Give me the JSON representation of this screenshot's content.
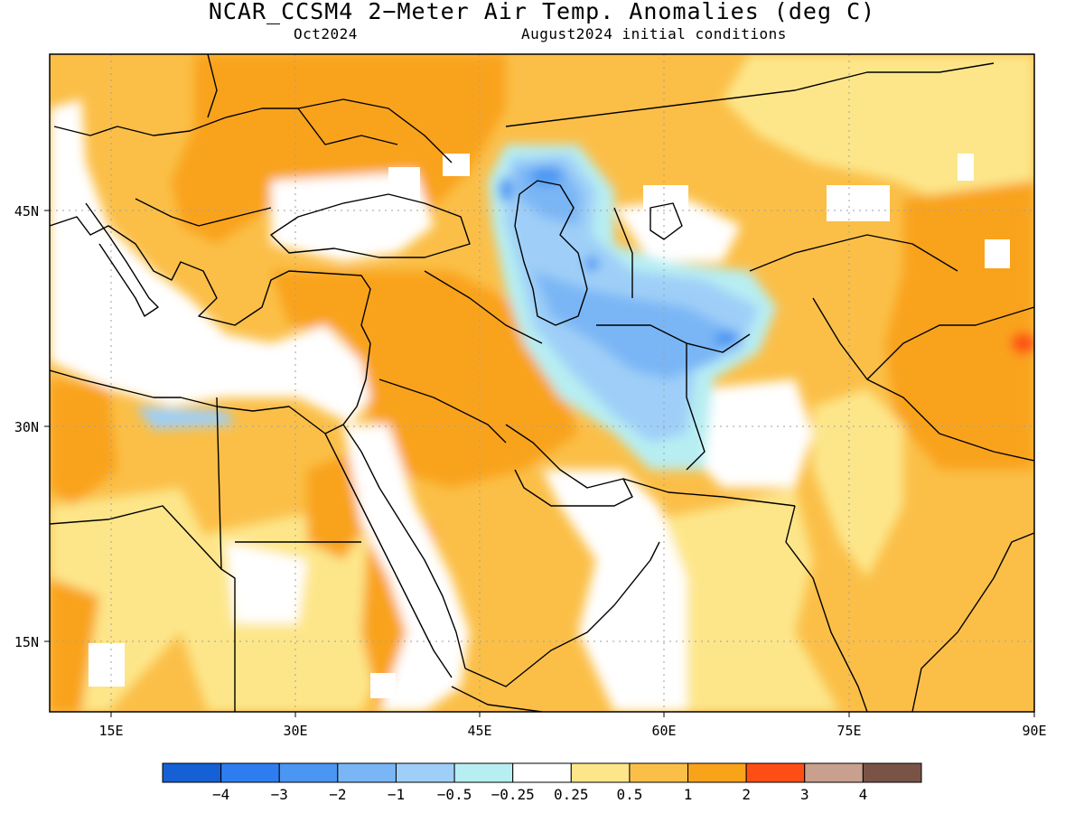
{
  "title": "NCAR_CCSM4 2−Meter Air Temp. Anomalies (deg C)",
  "valid_month": "Oct2024",
  "initial_conditions": "August2024 initial conditions",
  "lat_ticks": [
    "45N",
    "30N",
    "15N"
  ],
  "lon_ticks": [
    "15E",
    "30E",
    "45E",
    "60E",
    "75E",
    "90E"
  ],
  "colorbar": {
    "colors": [
      "#1560d4",
      "#2e7df0",
      "#4a96f2",
      "#7ab6f5",
      "#9fcff8",
      "#b7eef2",
      "#ffffff",
      "#fde68a",
      "#fbbf48",
      "#f9a31a",
      "#ff4d16",
      "#c9a08e",
      "#7a5347"
    ],
    "labels": [
      "−4",
      "−3",
      "−2",
      "−1",
      "−0.5",
      "−0.25",
      "0.25",
      "0.5",
      "1",
      "2",
      "3",
      "4"
    ]
  }
}
